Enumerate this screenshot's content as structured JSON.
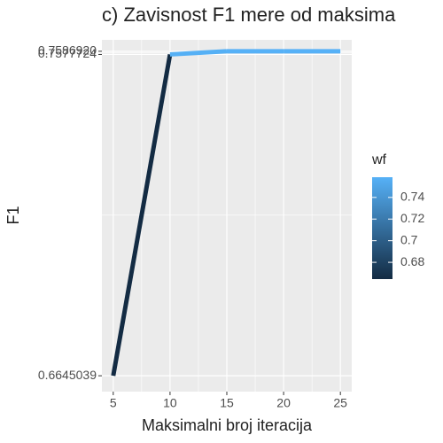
{
  "chart_data": {
    "type": "line",
    "title": "c) Zavisnost F1 mere od maksima",
    "x_label": "Maksimalni broj iteracija",
    "y_label": "F1",
    "x": [
      5,
      10,
      15,
      20,
      25
    ],
    "series": [
      {
        "name": "F1",
        "values": [
          0.6645039,
          0.7577724,
          0.758692,
          0.758692,
          0.758692
        ]
      }
    ],
    "xlim": [
      4,
      26
    ],
    "xticks": [
      5,
      10,
      15,
      20,
      25
    ],
    "ylim": [
      0.6599,
      0.762
    ],
    "yticks": [
      0.6645039,
      0.7577724,
      {
        "value": 0.758692,
        "label": "0.7586920"
      }
    ],
    "grid": true,
    "legend": {
      "title": "wf",
      "lim": [
        0.6645039,
        0.758692
      ],
      "ticks": [
        0.68,
        0.7,
        0.72,
        0.74
      ],
      "low_color": "#132B43",
      "high_color": "#56B1F7",
      "position": "right"
    }
  }
}
